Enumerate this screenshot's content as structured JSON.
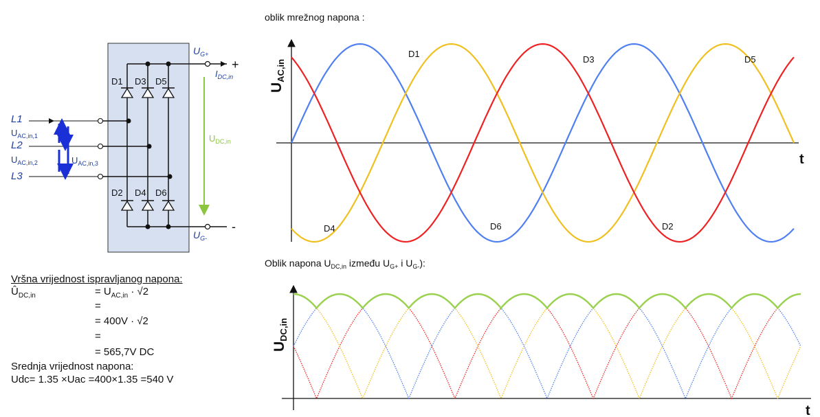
{
  "colors": {
    "phase1": "#4f7ff0",
    "phase2": "#f0c020",
    "phase3": "#ee2222",
    "rectified": "#9bd150",
    "bridge_bg": "#d6e0f1",
    "arrow_blue": "#1a2fd6",
    "udc_green": "#8cc63f",
    "label_blue": "#1f3fa0"
  },
  "circuit": {
    "lines": [
      "L1",
      "L2",
      "L3"
    ],
    "upper_diodes": [
      "D1",
      "D3",
      "D5"
    ],
    "lower_diodes": [
      "D2",
      "D4",
      "D6"
    ],
    "ug_plus": {
      "main": "U",
      "sub": "G+"
    },
    "ug_minus": {
      "main": "U",
      "sub": "G-"
    },
    "plus_sign": "+",
    "minus_sign": "-",
    "idc": {
      "main": "I",
      "sub": "DC,in"
    },
    "udc": {
      "main": "U",
      "sub": "DC,in"
    },
    "uac1": {
      "main": "U",
      "sub": "AC,in,1"
    },
    "uac2": {
      "main": "U",
      "sub": "AC,in,2"
    },
    "uac3": {
      "main": "U",
      "sub": "AC,in,3"
    }
  },
  "formula": {
    "heading": "Vršna vrijednost ispravljanog napona:",
    "lhs_main": "Û",
    "lhs_sub": "DC,in",
    "rows": [
      {
        "label": "",
        "value_main": "= U",
        "value_sub": "AC,in",
        "value_tail": " · √2"
      },
      {
        "label": "",
        "value_main": "=",
        "value_sub": "",
        "value_tail": ""
      },
      {
        "label": "",
        "value_main": "= 400V · √2",
        "value_sub": "",
        "value_tail": ""
      },
      {
        "label": "",
        "value_main": "=",
        "value_sub": "",
        "value_tail": ""
      },
      {
        "label": "",
        "value_main": "= 565,7V DC",
        "value_sub": "",
        "value_tail": ""
      }
    ],
    "mean_heading": "Srednja vrijednost napona:",
    "mean_value": "Udc= 1.35 ×Uac =400×1.35 =540 V"
  },
  "chart_data": [
    {
      "type": "line",
      "title": "oblik mrežnog napona :",
      "ylabel_main": "U",
      "ylabel_sub": "AC,in",
      "xlabel": "t",
      "x_range_deg": [
        0,
        660
      ],
      "y_range": [
        -1.12,
        1.12
      ],
      "grid": false,
      "series": [
        {
          "key": "phase1",
          "phase_deg": 0,
          "color_key": "phase1"
        },
        {
          "key": "phase2",
          "phase_deg": -120,
          "color_key": "phase2"
        },
        {
          "key": "phase3",
          "phase_deg": 120,
          "color_key": "phase3"
        }
      ],
      "annotations": [
        "D1",
        "D3",
        "D5",
        "D4",
        "D6",
        "D2"
      ]
    },
    {
      "type": "line",
      "title_main": "Oblik napona U",
      "title_sub1": "DC,in",
      "title_mid": " između U",
      "title_sub2": "G+",
      "title_mid2": " i U",
      "title_sub3": "G-",
      "title_end": "):",
      "ylabel_main": "U",
      "ylabel_sub": "DC,in",
      "xlabel": "t",
      "x_range_deg": [
        30,
        690
      ],
      "y_range": [
        0,
        1.15
      ],
      "grid": false,
      "series": [
        {
          "key": "envelope",
          "color_key": "rectified",
          "description_values": "max of |sin(x)|, |sin(x-120)|, |sin(x+120)|"
        },
        {
          "key": "abs_phase1",
          "color_key": "phase1",
          "dotted": true
        },
        {
          "key": "abs_phase2",
          "color_key": "phase2",
          "dotted": true
        },
        {
          "key": "abs_phase3",
          "color_key": "phase3",
          "dotted": true
        }
      ]
    }
  ]
}
